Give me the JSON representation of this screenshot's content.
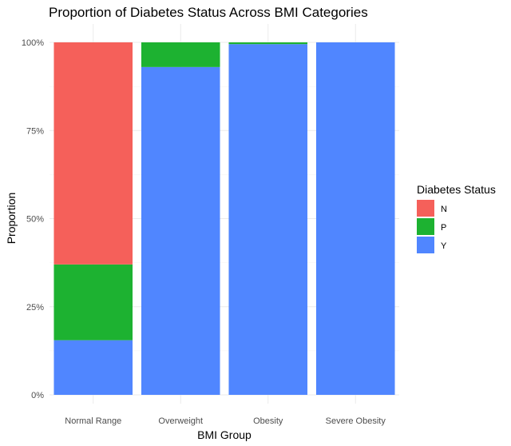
{
  "chart_data": {
    "type": "bar",
    "stacked": true,
    "title": "Proportion of Diabetes Status Across BMI Categories",
    "xlabel": "BMI Group",
    "ylabel": "Proportion",
    "categories": [
      "Normal Range",
      "Overweight",
      "Obesity",
      "Severe Obesity"
    ],
    "y_ticks": [
      "0%",
      "25%",
      "50%",
      "75%",
      "100%"
    ],
    "ylim": [
      0,
      1
    ],
    "grid": true,
    "legend": {
      "title": "Diabetes Status",
      "placement": "right",
      "entries": [
        "N",
        "P",
        "Y"
      ]
    },
    "series": [
      {
        "name": "Y",
        "color": "#5086FF",
        "values": [
          0.155,
          0.93,
          0.995,
          1.0
        ]
      },
      {
        "name": "P",
        "color": "#1DB231",
        "values": [
          0.215,
          0.07,
          0.005,
          0.0
        ]
      },
      {
        "name": "N",
        "color": "#F5605A",
        "values": [
          0.63,
          0.0,
          0.0,
          0.0
        ]
      }
    ],
    "legend_colors": {
      "N": "#F5605A",
      "P": "#1DB231",
      "Y": "#5086FF"
    }
  }
}
